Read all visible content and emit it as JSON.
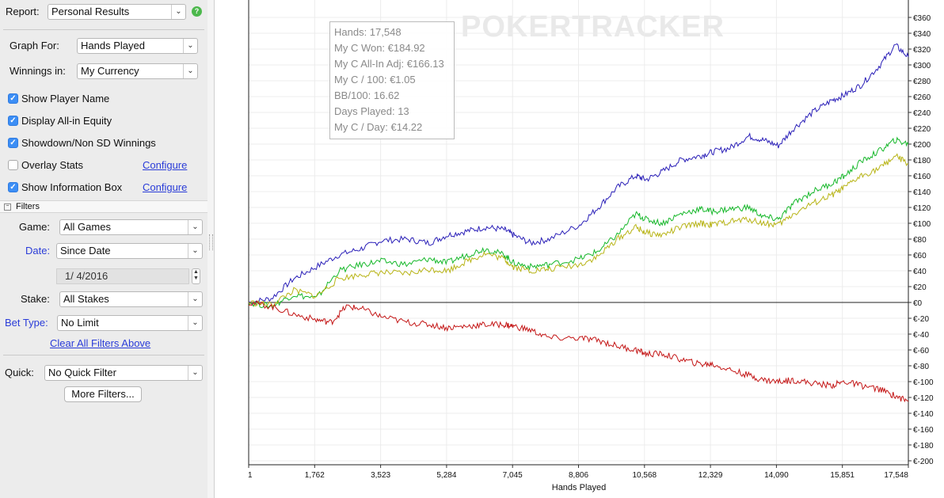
{
  "sidebar": {
    "report_label": "Report:",
    "report_value": "Personal Results",
    "graph_for_label": "Graph For:",
    "graph_for_value": "Hands Played",
    "winnings_in_label": "Winnings in:",
    "winnings_in_value": "My Currency",
    "options": [
      {
        "label": "Show Player Name",
        "checked": true
      },
      {
        "label": "Display All-in Equity",
        "checked": true
      },
      {
        "label": "Showdown/Non SD Winnings",
        "checked": true
      },
      {
        "label": "Overlay Stats",
        "checked": false
      },
      {
        "label": "Show Information Box",
        "checked": true
      }
    ],
    "configure_label": "Configure",
    "filters_header": "Filters",
    "game_label": "Game:",
    "game_value": "All Games",
    "date_label": "Date:",
    "date_value": "Since Date",
    "date_field": "1/  4/2016",
    "stake_label": "Stake:",
    "stake_value": "All Stakes",
    "bet_type_label": "Bet Type:",
    "bet_type_value": "No Limit",
    "clear_filters": "Clear All Filters Above",
    "quick_label": "Quick:",
    "quick_value": "No Quick Filter",
    "more_filters": "More Filters..."
  },
  "icons": {
    "dropdown": "chevron-down-icon",
    "help": "help-icon",
    "check": "checkmark-icon",
    "collapse": "collapse-box-icon",
    "stepper": "stepper-icon"
  },
  "watermark": "POKERTRACKER",
  "info_box": {
    "lines": [
      "Hands: 17,548",
      "My C Won: €184.92",
      "My C All-In Adj: €166.13",
      "My C / 100: €1.05",
      "BB/100: 16.62",
      "Days Played: 13",
      "My C / Day: €14.22"
    ]
  },
  "chart_data": {
    "type": "line",
    "xlabel": "Hands Played",
    "ylabel": "",
    "x_ticks": [
      "1",
      "1,762",
      "3,523",
      "5,284",
      "7,045",
      "8,806",
      "10,568",
      "12,329",
      "14,090",
      "15,851",
      "17,548"
    ],
    "y_ticks": [
      "€360",
      "€340",
      "€320",
      "€300",
      "€280",
      "€260",
      "€240",
      "€220",
      "€200",
      "€180",
      "€160",
      "€140",
      "€120",
      "€100",
      "€80",
      "€60",
      "€40",
      "€20",
      "€0",
      "€-20",
      "€-40",
      "€-60",
      "€-80",
      "€-100",
      "€-120",
      "€-140",
      "€-160",
      "€-180",
      "€-200"
    ],
    "xlim": [
      1,
      17548
    ],
    "ylim": [
      -200,
      372
    ],
    "grid": true,
    "series": [
      {
        "color": "#2a1fb8",
        "x": [
          1,
          600,
          1200,
          1800,
          2400,
          3000,
          3523,
          4200,
          4800,
          5284,
          5800,
          6300,
          6800,
          7045,
          7500,
          8000,
          8806,
          9300,
          9800,
          10300,
          10568,
          11000,
          11500,
          12000,
          12329,
          12800,
          13300,
          13700,
          14090,
          14500,
          15000,
          15500,
          15851,
          16300,
          16800,
          17200,
          17548
        ],
        "y": [
          0,
          5,
          30,
          45,
          60,
          68,
          78,
          80,
          75,
          85,
          90,
          95,
          92,
          85,
          75,
          80,
          98,
          120,
          145,
          160,
          155,
          165,
          180,
          185,
          190,
          195,
          210,
          205,
          198,
          220,
          240,
          255,
          262,
          275,
          300,
          325,
          310
        ]
      },
      {
        "color": "#16b82a",
        "x": [
          1,
          600,
          1200,
          1800,
          2400,
          3000,
          3523,
          4200,
          4800,
          5284,
          5800,
          6300,
          6800,
          7045,
          7500,
          8000,
          8806,
          9300,
          9800,
          10300,
          10568,
          11000,
          11500,
          12000,
          12329,
          12800,
          13300,
          13700,
          14090,
          14500,
          15000,
          15500,
          15851,
          16300,
          16800,
          17200,
          17548
        ],
        "y": [
          0,
          -5,
          10,
          5,
          40,
          48,
          52,
          48,
          55,
          50,
          60,
          68,
          60,
          50,
          45,
          48,
          55,
          65,
          85,
          112,
          105,
          100,
          112,
          118,
          115,
          118,
          120,
          108,
          105,
          125,
          140,
          150,
          160,
          178,
          192,
          205,
          200
        ]
      },
      {
        "color": "#b8b416",
        "x": [
          1,
          600,
          1200,
          1800,
          2400,
          3000,
          3523,
          4200,
          4800,
          5284,
          5800,
          6300,
          6800,
          7045,
          7500,
          8000,
          8806,
          9300,
          9800,
          10300,
          10568,
          11000,
          11500,
          12000,
          12329,
          12800,
          13300,
          13700,
          14090,
          14500,
          15000,
          15500,
          15851,
          16300,
          16800,
          17200,
          17548
        ],
        "y": [
          0,
          -3,
          15,
          8,
          30,
          35,
          38,
          36,
          42,
          40,
          52,
          62,
          55,
          45,
          40,
          42,
          48,
          58,
          80,
          95,
          88,
          85,
          95,
          100,
          98,
          102,
          105,
          100,
          98,
          112,
          125,
          135,
          145,
          160,
          170,
          185,
          175
        ]
      },
      {
        "color": "#c41616",
        "x": [
          1,
          600,
          1200,
          1800,
          2200,
          2600,
          3000,
          3523,
          4200,
          4800,
          5284,
          5800,
          6300,
          6800,
          7045,
          7500,
          8000,
          8806,
          9300,
          9800,
          10300,
          10568,
          11000,
          11500,
          12000,
          12329,
          12800,
          13300,
          13700,
          14090,
          14500,
          15000,
          15500,
          15851,
          16300,
          16800,
          17200,
          17548
        ],
        "y": [
          0,
          -5,
          -15,
          -22,
          -25,
          -5,
          -8,
          -18,
          -25,
          -28,
          -32,
          -30,
          -28,
          -28,
          -30,
          -35,
          -45,
          -45,
          -48,
          -55,
          -60,
          -65,
          -65,
          -72,
          -78,
          -78,
          -85,
          -92,
          -98,
          -100,
          -98,
          -102,
          -105,
          -100,
          -105,
          -110,
          -118,
          -125
        ]
      }
    ]
  }
}
